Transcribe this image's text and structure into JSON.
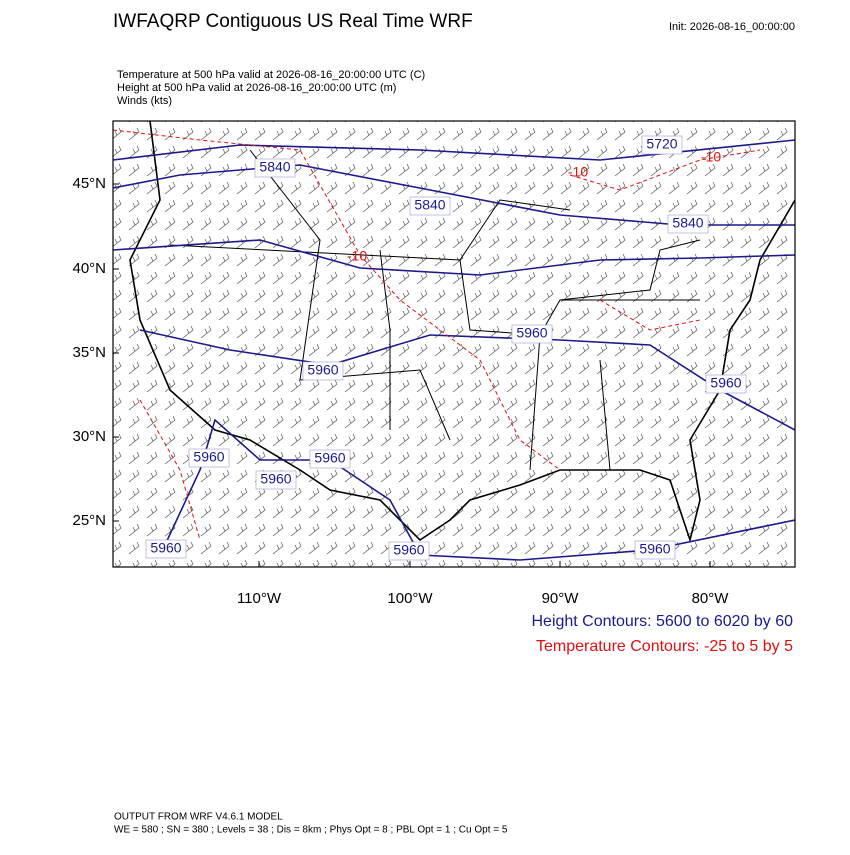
{
  "header": {
    "title": "IWFAQRP Contiguous US Real Time WRF",
    "init": "Init: 2026-08-16_00:00:00"
  },
  "subtitles": [
    "Temperature at 500 hPa valid at 2026-08-16_20:00:00 UTC   (C)",
    "Height at 500 hPa valid at 2026-08-16_20:00:00 UTC   (m)",
    "Winds   (kts)"
  ],
  "map": {
    "lat_labels": [
      "45°N",
      "40°N",
      "35°N",
      "30°N",
      "25°N"
    ],
    "lon_labels": [
      "110°W",
      "100°W",
      "90°W",
      "80°W"
    ],
    "height_contour_labels": [
      "5840",
      "5720",
      "5840",
      "5840",
      "5960",
      "5960",
      "5960",
      "5960",
      "5960",
      "5960",
      "5960",
      "5960",
      "5960"
    ],
    "temperature_contour_labels": [
      "-10",
      "-10",
      "-10"
    ]
  },
  "legend": {
    "height": "Height Contours: 5600 to 6020 by 60",
    "temperature": "Temperature Contours: -25 to 5 by 5"
  },
  "footer": {
    "model": "OUTPUT FROM WRF V4.6.1 MODEL",
    "settings": "WE = 580 ; SN = 380 ; Levels = 38 ; Dis = 8km ; Phys Opt = 8 ; PBL Opt = 1 ; Cu Opt = 5"
  }
}
